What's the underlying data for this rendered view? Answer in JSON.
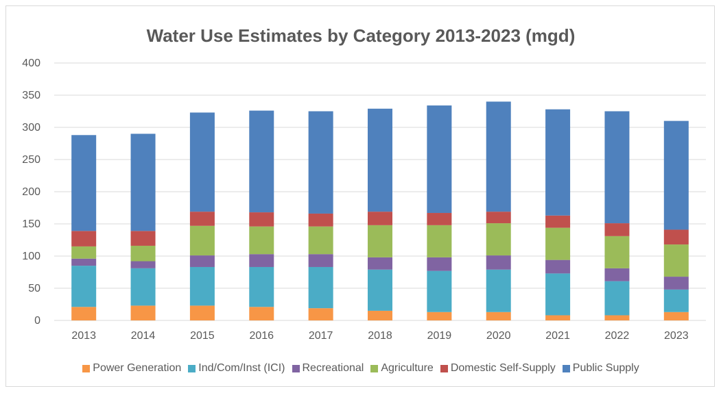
{
  "chart_data": {
    "type": "bar",
    "stacked": true,
    "title": "Water Use Estimates by Category 2013-2023 (mgd)",
    "xlabel": "",
    "ylabel": "",
    "ylim": [
      0,
      400
    ],
    "yticks": [
      "0",
      "50",
      "100",
      "150",
      "200",
      "250",
      "300",
      "350",
      "400"
    ],
    "grid": true,
    "legend_position": "bottom",
    "categories": [
      "2013",
      "2014",
      "2015",
      "2016",
      "2017",
      "2018",
      "2019",
      "2020",
      "2021",
      "2022",
      "2023"
    ],
    "series": [
      {
        "name": "Power Generation",
        "color": "#f79646",
        "values": [
          21,
          23,
          23,
          21,
          19,
          15,
          13,
          13,
          8,
          8,
          13
        ]
      },
      {
        "name": "Ind/Com/Inst (ICI)",
        "color": "#4bacc6",
        "values": [
          64,
          58,
          60,
          62,
          64,
          64,
          64,
          66,
          65,
          53,
          35
        ]
      },
      {
        "name": "Recreational",
        "color": "#8064a2",
        "values": [
          11,
          11,
          18,
          20,
          20,
          19,
          21,
          22,
          21,
          20,
          20
        ]
      },
      {
        "name": "Agriculture",
        "color": "#9bbb59",
        "values": [
          19,
          24,
          46,
          43,
          43,
          50,
          50,
          50,
          50,
          50,
          50
        ]
      },
      {
        "name": "Domestic Self-Supply",
        "color": "#c0504d",
        "values": [
          24,
          23,
          22,
          22,
          20,
          21,
          19,
          18,
          19,
          20,
          23
        ]
      },
      {
        "name": "Public Supply",
        "color": "#4f81bd",
        "values": [
          149,
          151,
          154,
          158,
          159,
          160,
          167,
          171,
          165,
          174,
          169
        ]
      }
    ]
  }
}
